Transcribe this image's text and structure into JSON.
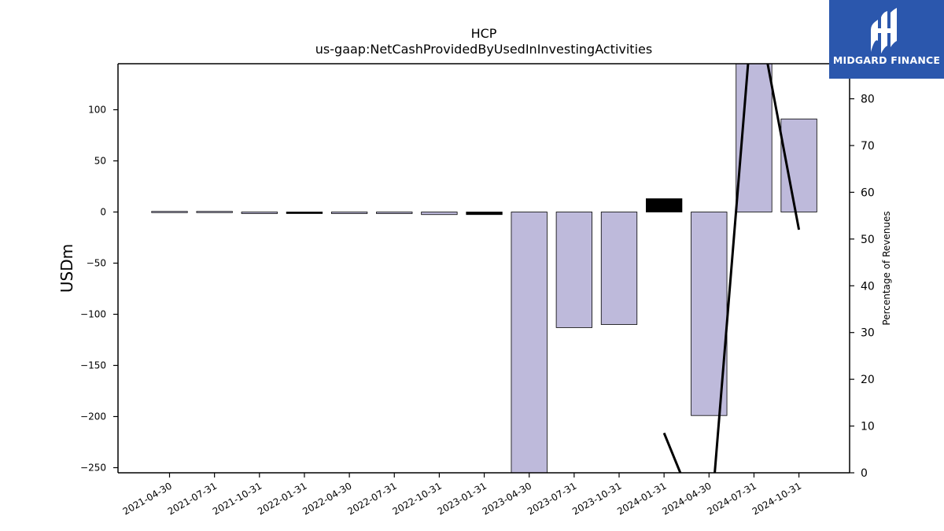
{
  "chart_data": {
    "type": "bar",
    "title": "HCP",
    "subtitle": "us-gaap:NetCashProvidedByUsedInInvestingActivities",
    "ylabel": "USDm",
    "y2label": "Percentage of Revenues",
    "categories": [
      "2021-04-30",
      "2021-07-31",
      "2021-10-31",
      "2022-01-31",
      "2022-04-30",
      "2022-07-31",
      "2022-10-31",
      "2023-01-31",
      "2023-04-30",
      "2023-07-31",
      "2023-10-31",
      "2024-01-31",
      "2024-04-30",
      "2024-07-31",
      "2024-10-31"
    ],
    "values": [
      -0.5,
      -0.8,
      -1.5,
      -1.5,
      -1.5,
      -1.5,
      -2.5,
      -2.5,
      -256,
      -113,
      -110,
      13,
      -199,
      150,
      91
    ],
    "bar_colors": [
      "#bebadb",
      "#bebadb",
      "#bebadb",
      "#000000",
      "#bebadb",
      "#bebadb",
      "#bebadb",
      "#000000",
      "#bebadb",
      "#bebadb",
      "#bebadb",
      "#000000",
      "#bebadb",
      "#bebadb",
      "#bebadb"
    ],
    "percentage_of_revenues": [
      null,
      null,
      null,
      null,
      null,
      null,
      null,
      null,
      null,
      null,
      null,
      8.5,
      -15,
      103,
      52
    ],
    "ylim": [
      -255,
      145
    ],
    "y2lim": [
      0,
      87.5
    ],
    "yticks": [
      -250,
      -200,
      -150,
      -100,
      -50,
      0,
      50,
      100
    ],
    "y2ticks": [
      0,
      10,
      20,
      30,
      40,
      50,
      60,
      70,
      80
    ],
    "legend": "none",
    "grid": false
  },
  "logo": {
    "text": "MIDGARD FINANCE",
    "background": "#2b57ad"
  },
  "colors": {
    "bar_fill": "#bebadb",
    "bar_edge": "#000000",
    "line": "#000000"
  }
}
